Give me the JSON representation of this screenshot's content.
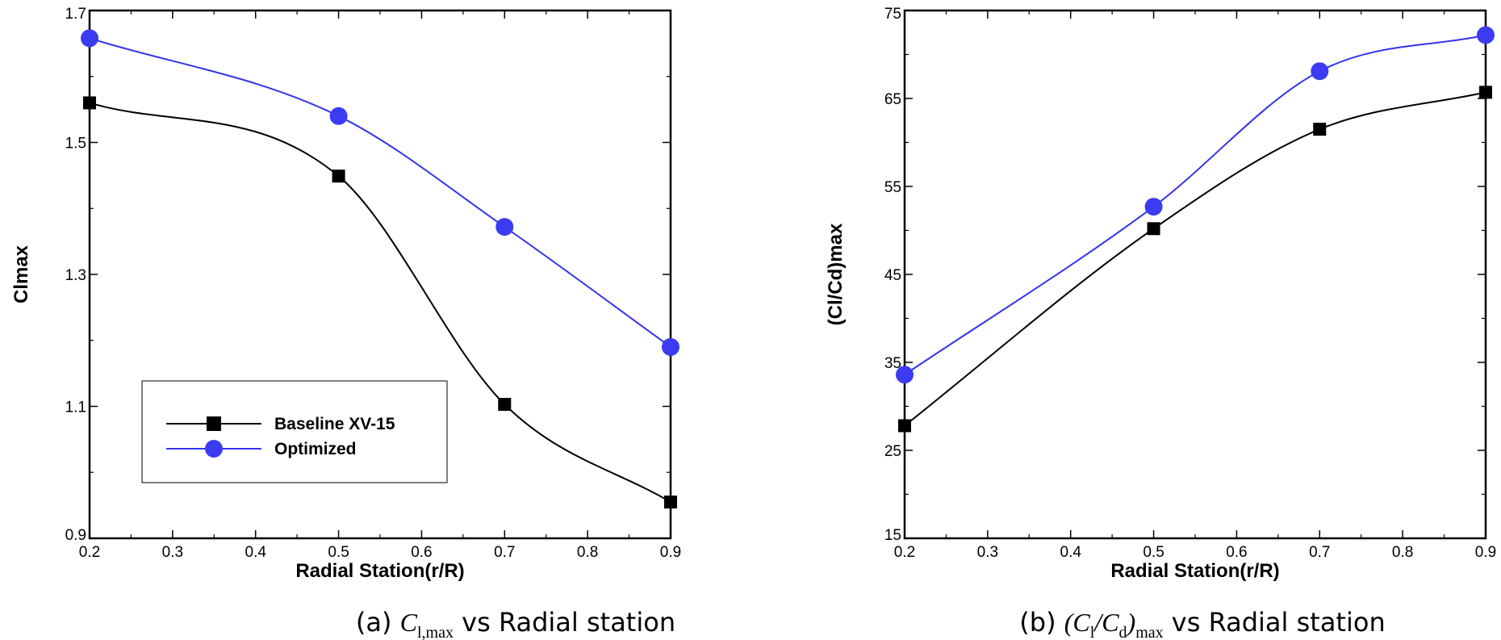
{
  "colors": {
    "baseline": "#000000",
    "optimized": "#3333ee",
    "optimized_marker": "#3b3bf2"
  },
  "chart_data": [
    {
      "type": "line",
      "ylabel": "Clmax",
      "xlabel": "Radial Station(r/R)",
      "xlim": [
        0.2,
        0.9
      ],
      "ylim": [
        0.9,
        1.7
      ],
      "x_ticks": [
        "0.2",
        "0.3",
        "0.4",
        "0.5",
        "0.6",
        "0.7",
        "0.8",
        "0.9"
      ],
      "y_ticks": [
        "0.9",
        "1.1",
        "1.3",
        "1.5",
        "1.7"
      ],
      "grid": false,
      "legend": {
        "position": "lower-left"
      },
      "series": [
        {
          "name": "Baseline XV-15",
          "marker": "square",
          "x": [
            0.2,
            0.5,
            0.7,
            0.9
          ],
          "y": [
            1.56,
            1.449,
            1.103,
            0.955
          ]
        },
        {
          "name": "Optimized",
          "marker": "circle",
          "x": [
            0.2,
            0.5,
            0.7,
            0.9
          ],
          "y": [
            1.658,
            1.54,
            1.372,
            1.19
          ]
        }
      ],
      "caption": {
        "prefix": "(a) ",
        "math_main": "C",
        "math_sub": "l,max",
        "suffix": " vs Radial station"
      }
    },
    {
      "type": "line",
      "ylabel": "(Cl/Cd)max",
      "xlabel": "Radial Station(r/R)",
      "xlim": [
        0.2,
        0.9
      ],
      "ylim": [
        15,
        75
      ],
      "x_ticks": [
        "0.2",
        "0.3",
        "0.4",
        "0.5",
        "0.6",
        "0.7",
        "0.8",
        "0.9"
      ],
      "y_ticks": [
        "15",
        "25",
        "35",
        "45",
        "55",
        "65",
        "75"
      ],
      "grid": false,
      "series": [
        {
          "name": "Baseline XV-15",
          "marker": "square",
          "x": [
            0.2,
            0.5,
            0.7,
            0.9
          ],
          "y": [
            27.8,
            50.2,
            61.5,
            65.7
          ]
        },
        {
          "name": "Optimized",
          "marker": "circle",
          "x": [
            0.2,
            0.5,
            0.7,
            0.9
          ],
          "y": [
            33.6,
            52.7,
            68.1,
            72.2
          ]
        }
      ],
      "caption": {
        "prefix": "(b) ",
        "math_open": "(",
        "math_cl": "C",
        "math_cl_sub": "l",
        "math_slash": "/",
        "math_cd": "C",
        "math_cd_sub": "d",
        "math_close": ")",
        "math_sub": "max",
        "suffix": " vs Radial station"
      }
    }
  ]
}
